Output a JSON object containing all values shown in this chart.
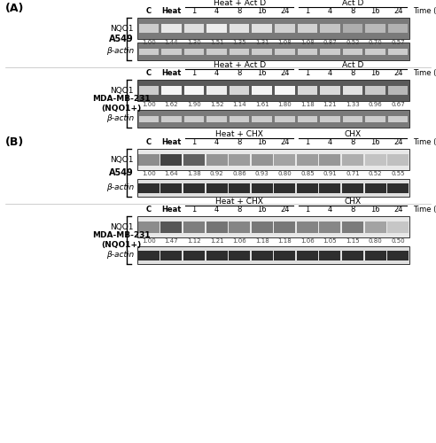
{
  "panel_A_title": "(A)",
  "panel_B_title": "(B)",
  "col_headers": [
    "C",
    "Heat",
    "1",
    "4",
    "8",
    "16",
    "24",
    "1",
    "4",
    "8",
    "16",
    "24"
  ],
  "time_label": "Time (h)",
  "group_headers_A": [
    "Heat + Act D",
    "Act D"
  ],
  "group_headers_B": [
    "Heat + CHX",
    "CHX"
  ],
  "row_labels_NQO1": "NQO1",
  "row_labels_actin": "β-actin",
  "cell_labels": [
    "A549",
    "MDA-MB-231\n(NQO1+)"
  ],
  "values_A549_NQO1_A": [
    1.0,
    1.44,
    1.3,
    1.51,
    1.35,
    1.31,
    1.08,
    1.08,
    0.87,
    0.52,
    0.7,
    0.57
  ],
  "values_MDA_NQO1_A": [
    1.0,
    1.62,
    1.9,
    1.52,
    1.14,
    1.61,
    1.8,
    1.18,
    1.21,
    1.33,
    0.96,
    0.67
  ],
  "values_A549_NQO1_B": [
    1.0,
    1.64,
    1.38,
    0.92,
    0.86,
    0.93,
    0.8,
    0.85,
    0.91,
    0.71,
    0.52,
    0.55
  ],
  "values_MDA_NQO1_B": [
    1.0,
    1.47,
    1.12,
    1.21,
    1.06,
    1.18,
    1.18,
    1.06,
    1.05,
    1.15,
    0.8,
    0.5
  ],
  "bg_color": "#ffffff"
}
